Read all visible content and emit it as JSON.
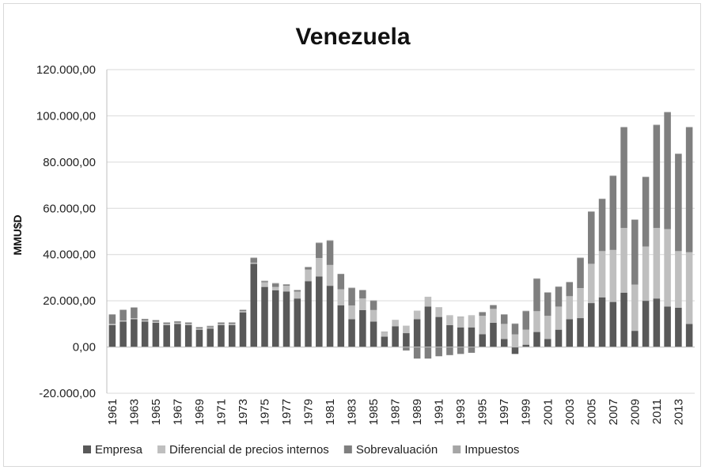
{
  "chart_data": {
    "type": "bar",
    "stacked": true,
    "title": "Venezuela",
    "ylabel": "MMU$D",
    "xlabel": "",
    "ylim": [
      -20000,
      120000
    ],
    "yticks": [
      -20000,
      0,
      20000,
      40000,
      60000,
      80000,
      100000,
      120000
    ],
    "ytick_labels": [
      "-20.000,00",
      "0,00",
      "20.000,00",
      "40.000,00",
      "60.000,00",
      "80.000,00",
      "100.000,00",
      "120.000,00"
    ],
    "xtick_labels": [
      "1961",
      "1963",
      "1965",
      "1967",
      "1969",
      "1971",
      "1973",
      "1975",
      "1977",
      "1979",
      "1981",
      "1983",
      "1985",
      "1987",
      "1989",
      "1991",
      "1993",
      "1995",
      "1997",
      "1999",
      "2001",
      "2003",
      "2005",
      "2007",
      "2009",
      "2011",
      "2013"
    ],
    "categories": [
      "1961",
      "1962",
      "1963",
      "1964",
      "1965",
      "1966",
      "1967",
      "1968",
      "1969",
      "1970",
      "1971",
      "1972",
      "1973",
      "1974",
      "1975",
      "1976",
      "1977",
      "1978",
      "1979",
      "1980",
      "1981",
      "1982",
      "1983",
      "1984",
      "1985",
      "1986",
      "1987",
      "1988",
      "1989",
      "1990",
      "1991",
      "1992",
      "1993",
      "1994",
      "1995",
      "1996",
      "1997",
      "1998",
      "1999",
      "2000",
      "2001",
      "2002",
      "2003",
      "2004",
      "2005",
      "2006",
      "2007",
      "2008",
      "2009",
      "2010",
      "2011",
      "2012",
      "2013",
      "2014"
    ],
    "grid": "horizontal",
    "legend_position": "bottom",
    "series": [
      {
        "name": "Empresa",
        "color": "#595959",
        "values": [
          9500,
          11000,
          12000,
          11000,
          10500,
          9500,
          10000,
          9500,
          7500,
          8000,
          9500,
          9500,
          15000,
          36000,
          26000,
          24500,
          24000,
          21000,
          28500,
          30500,
          26500,
          18000,
          12000,
          16000,
          11000,
          4500,
          9000,
          6000,
          12000,
          17500,
          13000,
          9500,
          8500,
          8500,
          5500,
          10500,
          3500,
          -3000,
          1000,
          6500,
          3500,
          7500,
          12000,
          12500,
          19000,
          21500,
          19500,
          23500,
          7000,
          20000,
          21000,
          17500,
          17000,
          10000
        ]
      },
      {
        "name": "Diferencial de precios internos",
        "color": "#bfbfbf",
        "values": [
          500,
          500,
          500,
          500,
          500,
          500,
          500,
          500,
          500,
          500,
          500,
          500,
          500,
          500,
          2000,
          1500,
          2500,
          3000,
          5000,
          8000,
          9000,
          7000,
          6000,
          5000,
          5000,
          2000,
          2500,
          3000,
          3500,
          4000,
          4000,
          4000,
          4500,
          5000,
          8000,
          6000,
          6500,
          5500,
          6500,
          9000,
          10000,
          10000,
          10000,
          13000,
          17000,
          20000,
          22500,
          28000,
          20000,
          23500,
          30500,
          33500,
          24500,
          31000
        ]
      },
      {
        "name": "Sobrevaluación",
        "color": "#7f7f7f",
        "values": [
          4000,
          4500,
          4500,
          500,
          500,
          500,
          500,
          500,
          500,
          500,
          500,
          500,
          500,
          2000,
          500,
          1500,
          500,
          500,
          1000,
          6500,
          10500,
          6500,
          7500,
          3500,
          4000,
          0,
          0,
          -1500,
          -5000,
          -5000,
          -4000,
          -3500,
          -3000,
          -2500,
          1500,
          1500,
          4000,
          4500,
          8000,
          14000,
          10000,
          8500,
          6000,
          13000,
          22500,
          22500,
          32000,
          43500,
          28000,
          30000,
          44500,
          50500,
          42000,
          54000
        ]
      },
      {
        "name": "Impuestos",
        "color": "#a6a6a6",
        "values": [
          200,
          200,
          200,
          200,
          200,
          200,
          200,
          200,
          200,
          200,
          200,
          200,
          200,
          200,
          200,
          200,
          200,
          200,
          200,
          200,
          200,
          200,
          200,
          200,
          200,
          200,
          200,
          200,
          200,
          200,
          200,
          200,
          200,
          200,
          200,
          200,
          200,
          200,
          200,
          200,
          200,
          200,
          200,
          200,
          200,
          200,
          200,
          200,
          200,
          200,
          200,
          200,
          200,
          200
        ]
      }
    ]
  }
}
